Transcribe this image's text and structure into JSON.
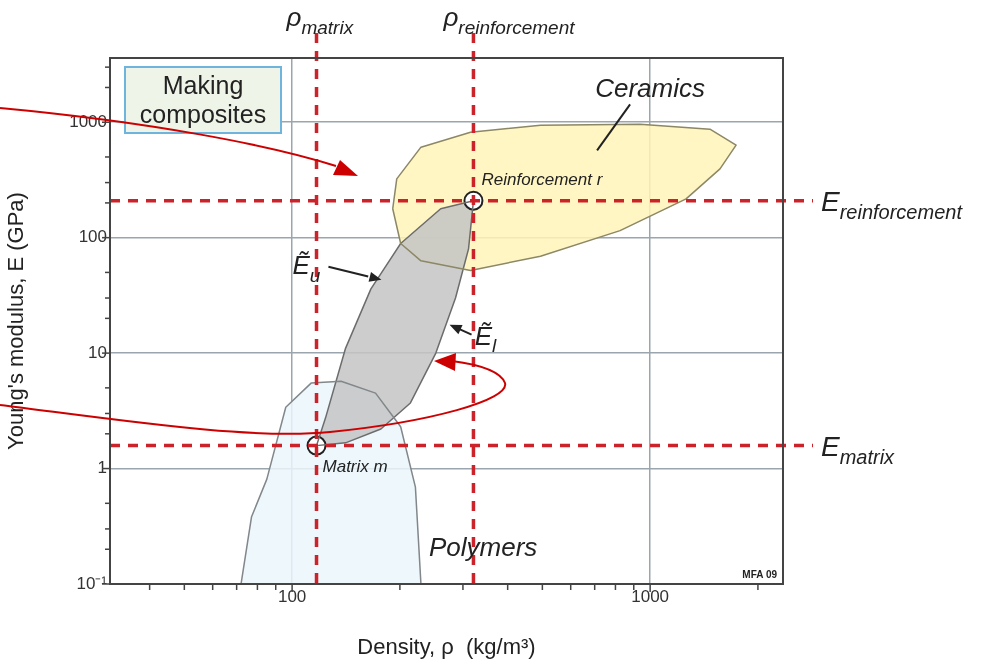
{
  "chart_data": {
    "type": "area",
    "title": "Making composites",
    "xlabel": "Density, ρ  (kg/m³)",
    "ylabel": "Young's modulus, E (GPa)",
    "log": "xy",
    "xlim": [
      31,
      2350
    ],
    "ylim": [
      0.1,
      3600
    ],
    "xticks": [
      {
        "value": 40,
        "label": null
      },
      {
        "value": 50,
        "label": null
      },
      {
        "value": 60,
        "label": null
      },
      {
        "value": 70,
        "label": null
      },
      {
        "value": 80,
        "label": null
      },
      {
        "value": 90,
        "label": null
      },
      100,
      {
        "value": 200,
        "label": null
      },
      {
        "value": 300,
        "label": null
      },
      {
        "value": 400,
        "label": null
      },
      {
        "value": 500,
        "label": null
      },
      {
        "value": 600,
        "label": null
      },
      {
        "value": 700,
        "label": null
      },
      {
        "value": 800,
        "label": null
      },
      {
        "value": 900,
        "label": null
      },
      1000,
      {
        "value": 2000,
        "label": null
      }
    ],
    "yticks": [
      {
        "value": 0.1,
        "label": "10⁻¹"
      },
      {
        "value": 0.2,
        "label": null
      },
      {
        "value": 0.3,
        "label": null
      },
      {
        "value": 0.5,
        "label": null
      },
      1,
      {
        "value": 2,
        "label": null
      },
      {
        "value": 3,
        "label": null
      },
      {
        "value": 5,
        "label": null
      },
      10,
      {
        "value": 20,
        "label": null
      },
      {
        "value": 30,
        "label": null
      },
      {
        "value": 50,
        "label": null
      },
      100,
      {
        "value": 200,
        "label": null
      },
      {
        "value": 300,
        "label": null
      },
      {
        "value": 500,
        "label": null
      },
      1000,
      {
        "value": 2000,
        "label": null
      },
      {
        "value": 3000,
        "label": null
      }
    ],
    "grid": true,
    "series": [
      {
        "name": "Polymers",
        "color": "#eaf6fb",
        "x": [
          72,
          77,
          85,
          96,
          113,
          137,
          171,
          201,
          221,
          229
        ],
        "values": [
          0.1,
          0.38,
          0.81,
          3.4,
          5.5,
          5.7,
          4.5,
          2.3,
          0.69,
          0.1
        ]
      },
      {
        "name": "Ceramics",
        "color": "#fff5b8",
        "x": [
          191,
          196,
          229,
          315,
          494,
          937,
          1469,
          1738,
          1567,
          1260,
          824,
          494,
          315,
          229,
          201
        ],
        "values": [
          178,
          323,
          608,
          820,
          942,
          958,
          870,
          634,
          394,
          217,
          115,
          69,
          52,
          63,
          89
        ]
      },
      {
        "color": "#c4c4c4",
        "x": [
          117,
          124,
          141,
          166,
          201,
          260,
          321,
          311,
          286,
          252,
          214,
          177,
          141
        ],
        "values": [
          1.58,
          2.75,
          11,
          36,
          89,
          178,
          209,
          80,
          30,
          10,
          3.7,
          2.2,
          1.67
        ]
      },
      {
        "type": "scatter",
        "marker": "circle",
        "name": "Matrix m",
        "color": "#222222",
        "x": [
          117
        ],
        "values": [
          1.58
        ]
      },
      {
        "type": "scatter",
        "marker": "circle",
        "name": "Reinforcement r",
        "color": "#222222",
        "x": [
          321
        ],
        "values": [
          209
        ]
      }
    ],
    "ref_lines": [
      {
        "axis": "x",
        "value": 117,
        "label": "ρ$_{matrix}$",
        "color": "#cc2229",
        "line_style": "dashed"
      },
      {
        "axis": "x",
        "value": 321,
        "label": "ρ$_{reinforcement}$",
        "color": "#cc2229",
        "line_style": "dashed"
      },
      {
        "axis": "y",
        "value": 1.58,
        "label": "E$_{matrix}$",
        "color": "#cc2229",
        "line_style": "dashed"
      },
      {
        "axis": "y",
        "value": 209,
        "label": "E$_{reinforcement}$",
        "color": "#cc2229",
        "line_style": "dashed"
      }
    ],
    "annotations": [
      {
        "text": "Ẽ$_{u}$",
        "x": 172,
        "y": 44
      },
      {
        "text": "Ẽ$_{l}$",
        "x": 270,
        "y": 18
      },
      "MFA 09"
    ]
  }
}
